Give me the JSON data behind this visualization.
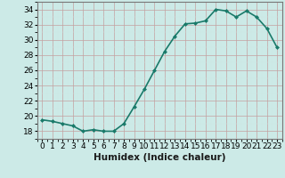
{
  "x": [
    0,
    1,
    2,
    3,
    4,
    5,
    6,
    7,
    8,
    9,
    10,
    11,
    12,
    13,
    14,
    15,
    16,
    17,
    18,
    19,
    20,
    21,
    22,
    23
  ],
  "y": [
    19.5,
    19.3,
    19.0,
    18.7,
    18.0,
    18.2,
    18.0,
    18.0,
    19.0,
    21.2,
    23.5,
    26.0,
    28.5,
    30.5,
    32.1,
    32.2,
    32.5,
    34.0,
    33.8,
    33.0,
    33.8,
    33.0,
    31.5,
    29.0
  ],
  "line_color": "#1a7a6a",
  "marker": "D",
  "marker_size": 2,
  "bg_color": "#cceae7",
  "grid_color_major": "#b8d8d4",
  "grid_color_minor": "#d4ecea",
  "xlabel": "Humidex (Indice chaleur)",
  "ylim": [
    17,
    35
  ],
  "xlim": [
    -0.5,
    23.5
  ],
  "yticks": [
    18,
    20,
    22,
    24,
    26,
    28,
    30,
    32,
    34
  ],
  "line_width": 1.2,
  "xlabel_fontsize": 7.5,
  "tick_fontsize": 6.5
}
